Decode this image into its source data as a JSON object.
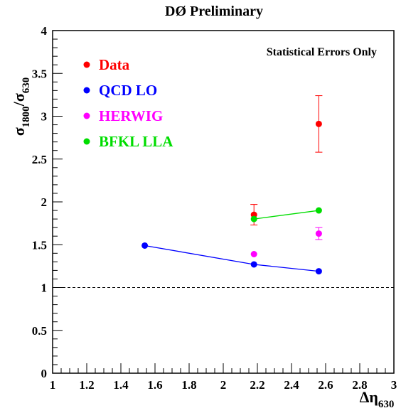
{
  "chart_data": {
    "type": "scatter",
    "title": "DØ Preliminary",
    "annotation": "Statistical Errors Only",
    "ylabel": {
      "main": "σ",
      "sub1": "1800",
      "slash": "/σ",
      "sub2": "630"
    },
    "xlabel": {
      "main": "Δη",
      "sub": "630"
    },
    "xlim": [
      1,
      3
    ],
    "ylim": [
      0,
      4
    ],
    "x_major_ticks": [
      1,
      1.2,
      1.4,
      1.6,
      1.8,
      2,
      2.2,
      2.4,
      2.6,
      2.8,
      3
    ],
    "x_tick_labels": [
      "1",
      "1.2",
      "1.4",
      "1.6",
      "1.8",
      "2",
      "2.2",
      "2.4",
      "2.6",
      "2.8",
      "3"
    ],
    "y_major_ticks": [
      0,
      0.5,
      1,
      1.5,
      2,
      2.5,
      3,
      3.5,
      4
    ],
    "y_tick_labels": [
      "0",
      "0.5",
      "1",
      "1.5",
      "2",
      "2.5",
      "3",
      "3.5",
      "4"
    ],
    "reference_line": {
      "y": 1,
      "style": "dashed"
    },
    "grid": false,
    "legend_position": "top-left",
    "series": [
      {
        "name": "Data",
        "color": "#ff0000",
        "connect": false,
        "points": [
          {
            "x": 2.18,
            "y": 1.85,
            "err_low": 0.12,
            "err_high": 0.12
          },
          {
            "x": 2.56,
            "y": 2.91,
            "err_low": 0.33,
            "err_high": 0.33
          }
        ]
      },
      {
        "name": "QCD LO",
        "color": "#0000ff",
        "connect": true,
        "points": [
          {
            "x": 1.54,
            "y": 1.49
          },
          {
            "x": 2.18,
            "y": 1.27
          },
          {
            "x": 2.56,
            "y": 1.19
          }
        ]
      },
      {
        "name": "HERWIG",
        "color": "#ff00ff",
        "connect": false,
        "points": [
          {
            "x": 2.18,
            "y": 1.39
          },
          {
            "x": 2.56,
            "y": 1.63,
            "err_low": 0.07,
            "err_high": 0.07
          }
        ]
      },
      {
        "name": "BFKL LLA",
        "color": "#00dd00",
        "connect": true,
        "points": [
          {
            "x": 2.18,
            "y": 1.8
          },
          {
            "x": 2.56,
            "y": 1.9
          }
        ]
      }
    ]
  }
}
